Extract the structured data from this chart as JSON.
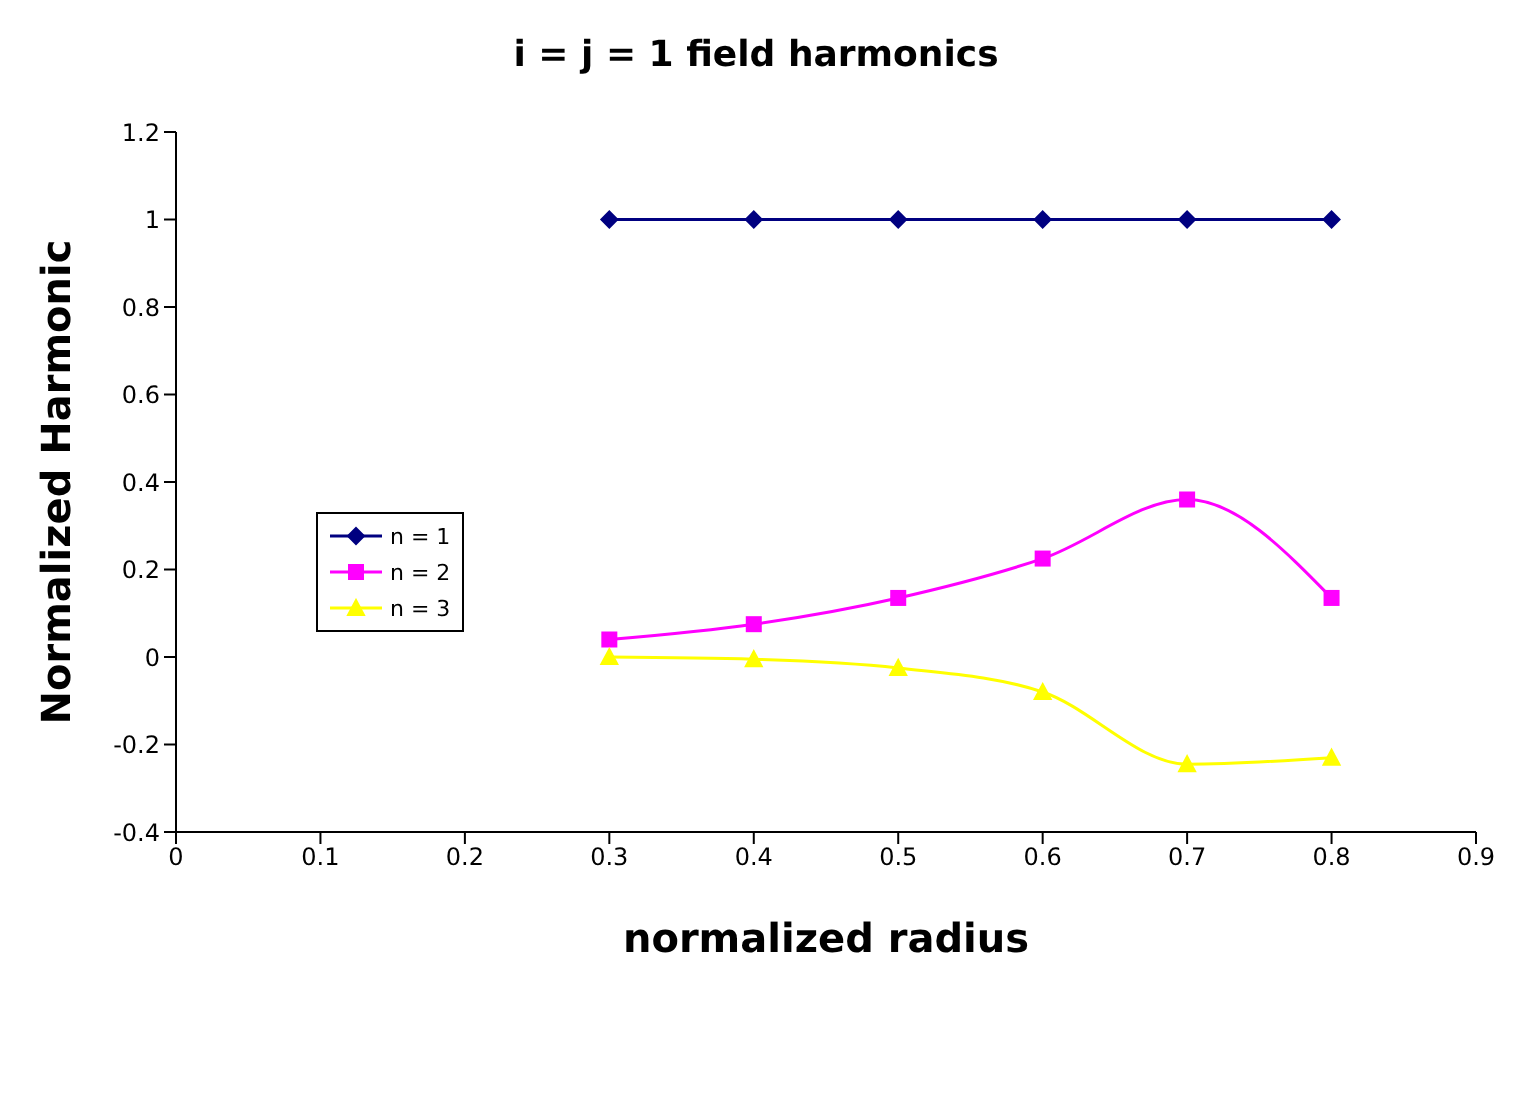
{
  "chart_data": {
    "type": "line",
    "title": "i = j = 1 field harmonics",
    "xlabel": "normalized radius",
    "ylabel": "Normalized Harmonic",
    "x": [
      0.3,
      0.4,
      0.5,
      0.6,
      0.7,
      0.8
    ],
    "series": [
      {
        "name": "n = 1",
        "color": "#000080",
        "marker": "diamond",
        "values": [
          1,
          1,
          1,
          1,
          1,
          1
        ]
      },
      {
        "name": "n = 2",
        "color": "#ff00ff",
        "marker": "square",
        "values": [
          0.04,
          0.075,
          0.135,
          0.225,
          0.36,
          0.135
        ]
      },
      {
        "name": "n = 3",
        "color": "#ffff00",
        "marker": "triangle",
        "values": [
          0,
          -0.005,
          -0.025,
          -0.08,
          -0.245,
          -0.23
        ]
      }
    ],
    "xlim": [
      0,
      0.9
    ],
    "xticks": [
      0,
      0.1,
      0.2,
      0.3,
      0.4,
      0.5,
      0.6,
      0.7,
      0.8,
      0.9
    ],
    "ylim": [
      -0.4,
      1.2
    ],
    "yticks": [
      -0.4,
      -0.2,
      0,
      0.2,
      0.4,
      0.6,
      0.8,
      1,
      1.2
    ],
    "grid": false,
    "legend": "left",
    "line_style": "solid"
  }
}
